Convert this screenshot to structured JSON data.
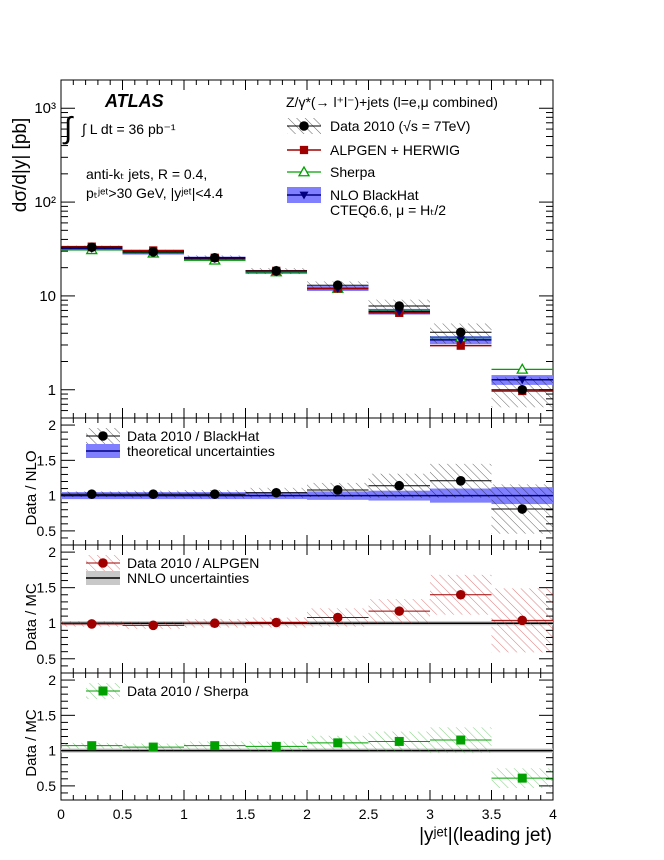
{
  "chart_data": [
    {
      "type": "scatter",
      "panel": "main",
      "yscale": "log",
      "ylabel": "dσ/d|y| [pb]",
      "ylim": [
        0.5,
        2000
      ],
      "ytick_labels": [
        "1",
        "10",
        "10²",
        "10³"
      ],
      "x_bins": [
        0.25,
        0.75,
        1.25,
        1.75,
        2.25,
        2.75,
        3.25,
        3.75
      ],
      "experiment": "ATLAS",
      "lumi_text": "∫ L dt = 36 pb⁻¹",
      "selection_lines": [
        "anti-kₜ jets,  R = 0.4,",
        "pₜʲᵉᵗ>30 GeV, |yʲᵉᵗ|<4.4"
      ],
      "legend_title": "Z/γ*(→ l⁺l⁻)+jets (l=e,μ combined)",
      "legend_extra": "CTEQ6.6, μ = Hₜ/2",
      "series": [
        {
          "name": "Data 2010 (√s = 7TeV)",
          "marker": "circle",
          "color": "#000000",
          "values": [
            33,
            29.5,
            25.5,
            18.5,
            13,
            7.8,
            4.1,
            1.0
          ]
        },
        {
          "name": "ALPGEN + HERWIG",
          "marker": "square",
          "color": "#a00000",
          "values": [
            33.5,
            30.5,
            25.5,
            18.5,
            12,
            6.6,
            2.95,
            0.97
          ]
        },
        {
          "name": "Sherpa",
          "marker": "triangle-open",
          "color": "#00a000",
          "values": [
            31,
            28.5,
            24,
            18,
            12,
            7.1,
            3.6,
            1.65
          ]
        },
        {
          "name": "NLO BlackHat",
          "marker": "triangle-down",
          "color": "#000080",
          "band_color": "#8080ff",
          "values": [
            32,
            29,
            25,
            18,
            12,
            6.8,
            3.4,
            1.28
          ]
        }
      ]
    },
    {
      "type": "scatter",
      "panel": "ratio-nlo",
      "ylabel": "Data / NLO",
      "ylim": [
        0.3,
        2.1
      ],
      "ytick_labels": [
        "0.5",
        "1",
        "1.5",
        "2"
      ],
      "series": [
        {
          "name": "Data 2010 / BlackHat",
          "marker": "circle",
          "color": "#000000",
          "values": [
            1.02,
            1.02,
            1.02,
            1.04,
            1.08,
            1.14,
            1.21,
            0.81
          ],
          "errors": [
            0.04,
            0.05,
            0.06,
            0.07,
            0.1,
            0.17,
            0.24,
            0.35
          ]
        },
        {
          "name": "theoretical uncertainties",
          "band": true,
          "color": "#8080ff",
          "values": [
            1,
            1,
            1,
            1,
            1,
            1,
            1,
            1
          ],
          "errors": [
            0.05,
            0.05,
            0.05,
            0.05,
            0.06,
            0.07,
            0.1,
            0.12
          ]
        }
      ]
    },
    {
      "type": "scatter",
      "panel": "ratio-alpgen",
      "ylabel": "Data / MC",
      "ylim": [
        0.3,
        2.1
      ],
      "ytick_labels": [
        "0.5",
        "1",
        "1.5",
        "2"
      ],
      "series": [
        {
          "name": "Data 2010 / ALPGEN",
          "marker": "circle",
          "color": "#a00000",
          "values": [
            0.99,
            0.97,
            1.0,
            1.01,
            1.08,
            1.17,
            1.4,
            1.04
          ],
          "errors": [
            0.04,
            0.05,
            0.06,
            0.07,
            0.13,
            0.17,
            0.28,
            0.45
          ]
        },
        {
          "name": "NNLO uncertainties",
          "band": true,
          "color": "#c8c8c8",
          "values": [
            1,
            1,
            1,
            1,
            1,
            1,
            1,
            1
          ],
          "errors": [
            0.03,
            0.03,
            0.03,
            0.03,
            0.03,
            0.03,
            0.03,
            0.03
          ]
        }
      ]
    },
    {
      "type": "scatter",
      "panel": "ratio-sherpa",
      "ylabel": "Data / MC",
      "ylim": [
        0.3,
        2.1
      ],
      "ytick_labels": [
        "0.5",
        "1",
        "1.5",
        "2"
      ],
      "xlabel": "|yʲᵉᵗ|(leading jet)",
      "xlim": [
        0,
        4
      ],
      "xtick_labels": [
        "0",
        "0.5",
        "1",
        "1.5",
        "2",
        "2.5",
        "3",
        "3.5",
        "4"
      ],
      "series": [
        {
          "name": "Data 2010 / Sherpa",
          "marker": "square",
          "color": "#00a000",
          "values": [
            1.07,
            1.05,
            1.07,
            1.06,
            1.11,
            1.13,
            1.15,
            0.61
          ],
          "errors": [
            0.04,
            0.05,
            0.06,
            0.07,
            0.1,
            0.14,
            0.18,
            0.14
          ]
        },
        {
          "name": "band",
          "band": true,
          "color": "#c8c8c8",
          "values": [
            1,
            1,
            1,
            1,
            1,
            1,
            1,
            1
          ],
          "errors": [
            0.03,
            0.03,
            0.03,
            0.03,
            0.03,
            0.03,
            0.03,
            0.03
          ]
        }
      ]
    }
  ]
}
